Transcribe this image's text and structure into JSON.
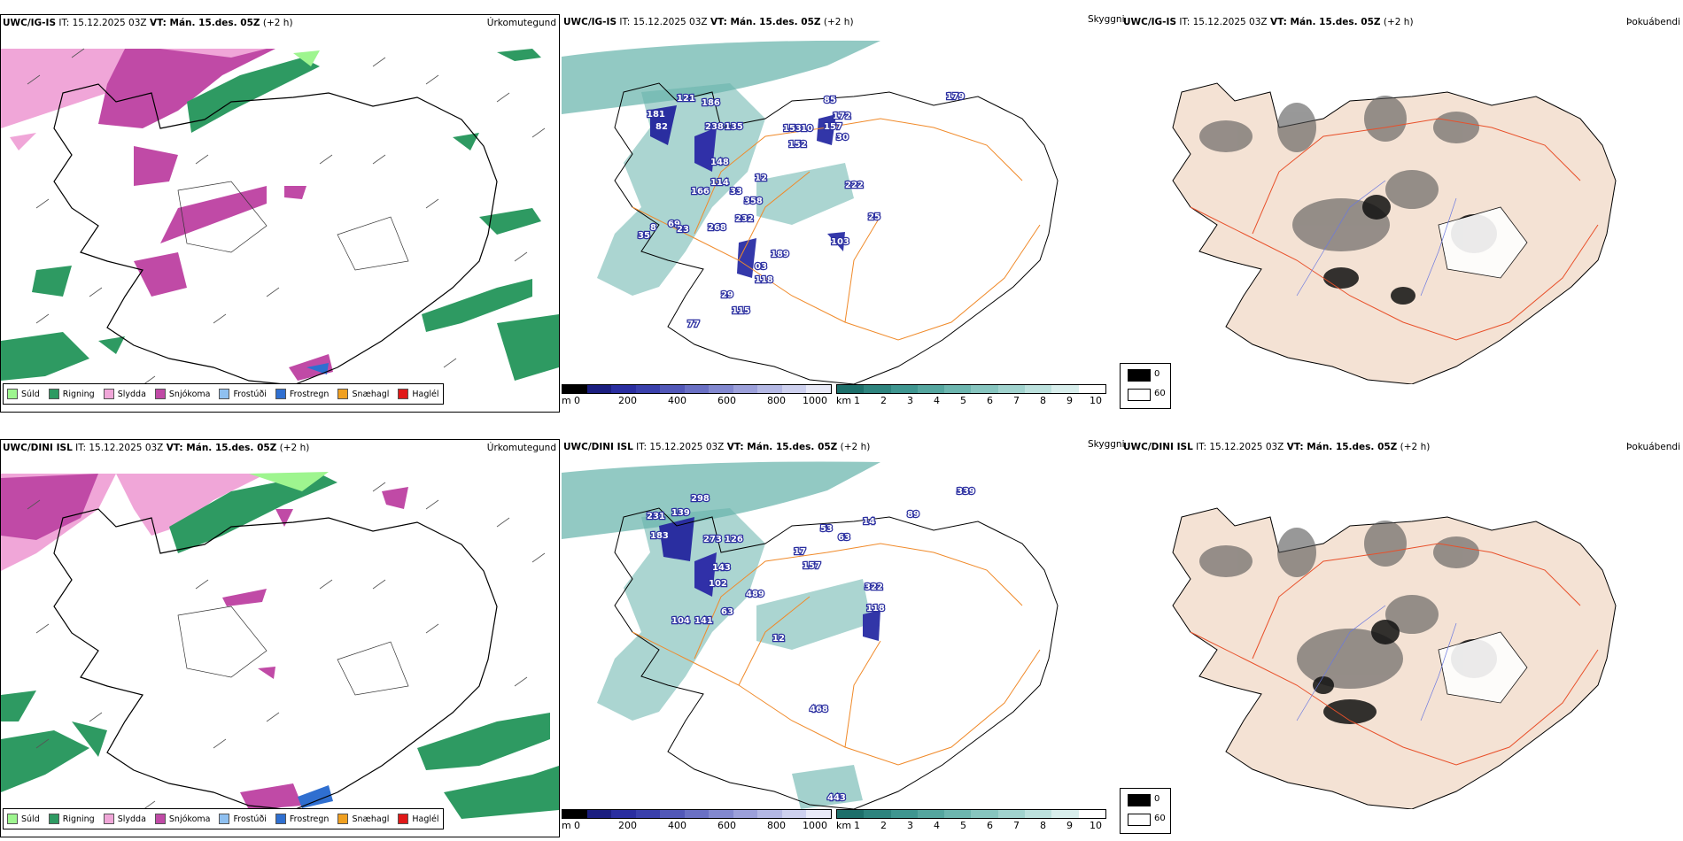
{
  "rows": [
    {
      "p1": {
        "model": "UWC/IG-IS",
        "it": "IT: 15.12.2025 03Z",
        "vt": "VT: Mán. 15.des. 05Z",
        "lead": "(+2 h)",
        "label": "Úrkomutegund"
      },
      "p2": {
        "model": "UWC/IG-IS",
        "it": "IT: 15.12.2025 03Z",
        "vt": "VT: Mán. 15.des. 05Z",
        "lead": "(+2 h)",
        "sky": "Skyggni"
      },
      "p3": {
        "model": "UWC/IG-IS",
        "it": "IT: 15.12.2025 03Z",
        "vt": "VT: Mán. 15.des. 05Z",
        "lead": "(+2 h)",
        "label": "Þokuábendi"
      },
      "values": [
        "121",
        "186",
        "181",
        "238",
        "135",
        "82",
        "148",
        "114",
        "12",
        "166",
        "33",
        "358",
        "232",
        "268",
        "69",
        "8",
        "23",
        "35",
        "189",
        "03",
        "118",
        "29",
        "115",
        "77",
        "85",
        "172",
        "153",
        "10",
        "157",
        "152",
        "30",
        "222",
        "103",
        "179",
        "25"
      ]
    },
    {
      "p1": {
        "model": "UWC/DINI ISL",
        "it": "IT: 15.12.2025 03Z",
        "vt": "VT: Mán. 15.des. 05Z",
        "lead": "(+2 h)",
        "label": "Úrkomutegund"
      },
      "p2": {
        "model": "UWC/DINI ISL",
        "it": "IT: 15.12.2025 03Z",
        "vt": "VT: Mán. 15.des. 05Z",
        "lead": "(+2 h)",
        "sky": "Skyggni"
      },
      "p3": {
        "model": "UWC/DINI ISL",
        "it": "IT: 15.12.2025 03Z",
        "vt": "VT: Mán. 15.des. 05Z",
        "lead": "(+2 h)",
        "label": "Þokuábendi"
      },
      "values": [
        "298",
        "139",
        "231",
        "183",
        "273",
        "126",
        "143",
        "102",
        "63",
        "104",
        "141",
        "489",
        "118",
        "157",
        "17",
        "53",
        "63",
        "322",
        "468",
        "443",
        "339",
        "89",
        "14",
        "12"
      ]
    }
  ],
  "precip_legend": [
    {
      "label": "Súld",
      "color": "#9ef58f"
    },
    {
      "label": "Rigning",
      "color": "#2e9a62"
    },
    {
      "label": "Slydda",
      "color": "#f0a6d8"
    },
    {
      "label": "Snjókoma",
      "color": "#c04aa6"
    },
    {
      "label": "Frostúði",
      "color": "#8fc0f0"
    },
    {
      "label": "Frostregn",
      "color": "#2f6fd0"
    },
    {
      "label": "Snæhagl",
      "color": "#f0a020"
    },
    {
      "label": "Haglél",
      "color": "#e01818"
    }
  ],
  "ceiling_bar": {
    "unit": "m",
    "ticks": [
      "0",
      "200",
      "400",
      "600",
      "800",
      "1000"
    ]
  },
  "vis_bar": {
    "unit": "km",
    "ticks": [
      "1",
      "2",
      "3",
      "4",
      "5",
      "6",
      "7",
      "8",
      "9",
      "10"
    ]
  },
  "fog_legend": {
    "low": "0",
    "high": "60"
  }
}
